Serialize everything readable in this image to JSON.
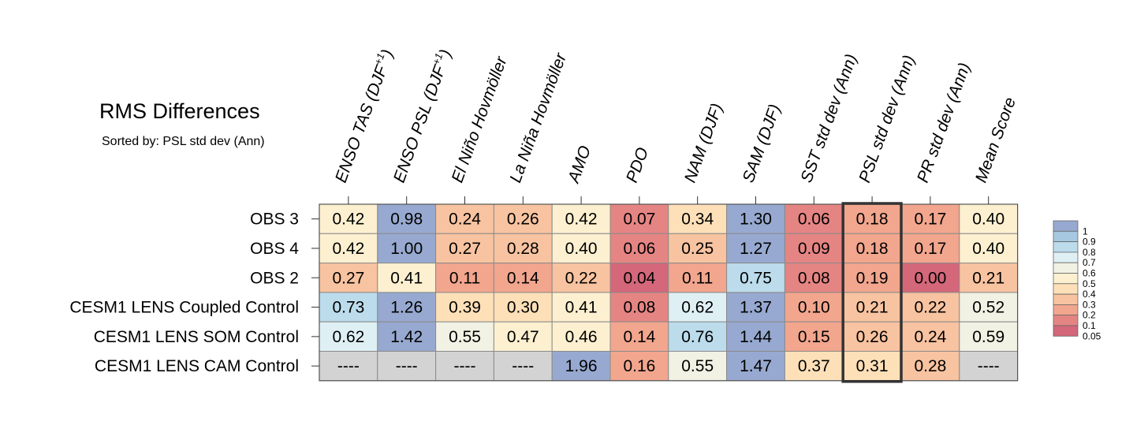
{
  "chart_data": {
    "type": "heatmap",
    "title": "RMS Differences",
    "subtitle": "Sorted by: PSL std dev (Ann)",
    "columns": [
      {
        "text": "ENSO TAS (DJF",
        "sup": "+1",
        "tail": ")"
      },
      {
        "text": "ENSO PSL (DJF",
        "sup": "+1",
        "tail": ")"
      },
      {
        "text": "El Niño Hovmöller",
        "sup": "",
        "tail": ""
      },
      {
        "text": "La Niña Hovmöller",
        "sup": "",
        "tail": ""
      },
      {
        "text": "AMO",
        "sup": "",
        "tail": ""
      },
      {
        "text": "PDO",
        "sup": "",
        "tail": ""
      },
      {
        "text": "NAM (DJF)",
        "sup": "",
        "tail": ""
      },
      {
        "text": "SAM (DJF)",
        "sup": "",
        "tail": ""
      },
      {
        "text": "SST std dev (Ann)",
        "sup": "",
        "tail": ""
      },
      {
        "text": "PSL std dev (Ann)",
        "sup": "",
        "tail": ""
      },
      {
        "text": "PR std dev (Ann)",
        "sup": "",
        "tail": ""
      },
      {
        "text": "Mean Score",
        "sup": "",
        "tail": ""
      }
    ],
    "rows": [
      "OBS 3",
      "OBS 4",
      "OBS 2",
      "CESM1 LENS Coupled Control",
      "CESM1 LENS SOM Control",
      "CESM1 LENS CAM Control"
    ],
    "values": [
      [
        "0.42",
        "0.98",
        "0.24",
        "0.26",
        "0.42",
        "0.07",
        "0.34",
        "1.30",
        "0.06",
        "0.18",
        "0.17",
        "0.40"
      ],
      [
        "0.42",
        "1.00",
        "0.27",
        "0.28",
        "0.40",
        "0.06",
        "0.25",
        "1.27",
        "0.09",
        "0.18",
        "0.17",
        "0.40"
      ],
      [
        "0.27",
        "0.41",
        "0.11",
        "0.14",
        "0.22",
        "0.04",
        "0.11",
        "0.75",
        "0.08",
        "0.19",
        "0.00",
        "0.21"
      ],
      [
        "0.73",
        "1.26",
        "0.39",
        "0.30",
        "0.41",
        "0.08",
        "0.62",
        "1.37",
        "0.10",
        "0.21",
        "0.22",
        "0.52"
      ],
      [
        "0.62",
        "1.42",
        "0.55",
        "0.47",
        "0.46",
        "0.14",
        "0.76",
        "1.44",
        "0.15",
        "0.26",
        "0.24",
        "0.59"
      ],
      [
        "----",
        "----",
        "----",
        "----",
        "1.96",
        "0.16",
        "0.55",
        "1.47",
        "0.37",
        "0.31",
        "0.28",
        "----"
      ]
    ],
    "highlight_column": "PSL std dev (Ann)",
    "missing_marker": "----",
    "colorbar": {
      "tick_labels": [
        "1",
        "0.9",
        "0.8",
        "0.7",
        "0.6",
        "0.5",
        "0.4",
        "0.3",
        "0.2",
        "0.1",
        "0.05"
      ],
      "colors_top_to_bottom": [
        "#97a9d0",
        "#a6c8e0",
        "#bcdcec",
        "#dff0f4",
        "#f1f1e4",
        "#fdf0d0",
        "#fde0b8",
        "#f8c3a0",
        "#f2a68e",
        "#e58583",
        "#d4677a"
      ]
    },
    "missing_color": "#d3d3d3"
  }
}
